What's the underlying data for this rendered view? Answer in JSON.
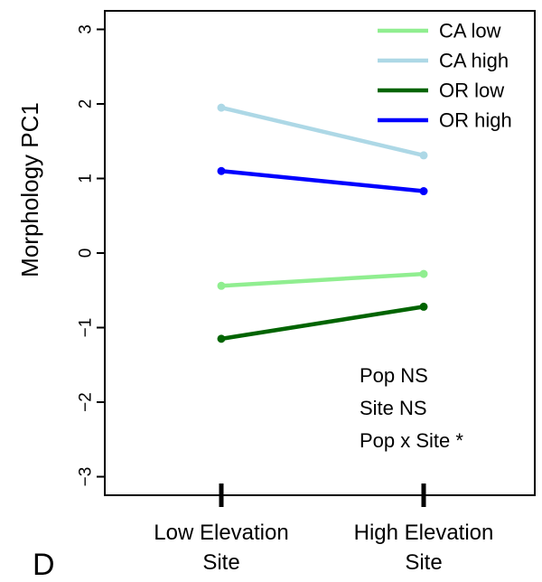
{
  "panel_label": "D",
  "chart_data": {
    "type": "line",
    "ylabel": "Morphology PC1",
    "xlabel": "",
    "ylim": [
      -3.2,
      3.2
    ],
    "y_ticks": [
      -3,
      -2,
      -1,
      0,
      1,
      2,
      3
    ],
    "y_tick_labels": [
      "−3",
      "−2",
      "−1",
      "0",
      "1",
      "2",
      "3"
    ],
    "categories": [
      {
        "line1": "Low Elevation",
        "line2": "Site"
      },
      {
        "line1": "High Elevation",
        "line2": "Site"
      }
    ],
    "legend_position": "top-right",
    "series": [
      {
        "name": "CA low",
        "color": "#90ee90",
        "values": [
          -0.44,
          -0.28
        ]
      },
      {
        "name": "CA high",
        "color": "#add8e6",
        "values": [
          1.95,
          1.31
        ]
      },
      {
        "name": "OR low",
        "color": "#006400",
        "values": [
          -1.15,
          -0.72
        ]
      },
      {
        "name": "OR high",
        "color": "#0000ff",
        "values": [
          1.1,
          0.83
        ]
      }
    ],
    "annotations": [
      "Pop NS",
      "Site NS",
      "Pop x Site *"
    ]
  }
}
